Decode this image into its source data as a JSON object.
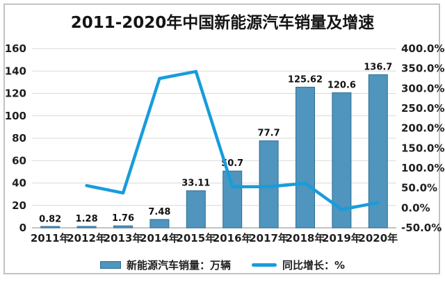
{
  "chart_data": {
    "type": "combo-bar-line",
    "title": "2011-2020年中国新能源汽车销量及增速",
    "categories": [
      "2011年",
      "2012年",
      "2013年",
      "2014年",
      "2015年",
      "2016年",
      "2017年",
      "2018年",
      "2019年",
      "2020年"
    ],
    "series": [
      {
        "name": "新能源汽车销量：万辆",
        "chart_type": "bar",
        "axis": "left",
        "values": [
          0.82,
          1.28,
          1.76,
          7.48,
          33.11,
          50.7,
          77.7,
          125.62,
          120.6,
          136.7
        ],
        "labels": [
          "0.82",
          "1.28",
          "1.76",
          "7.48",
          "33.11",
          "50.7",
          "77.7",
          "125.62",
          "120.6",
          "136.7"
        ]
      },
      {
        "name": "同比增长：%",
        "chart_type": "line",
        "axis": "right",
        "values": [
          null,
          56.1,
          37.5,
          325.0,
          342.6,
          53.1,
          53.3,
          61.7,
          -4.0,
          13.3
        ]
      }
    ],
    "y_left": {
      "min": 0,
      "max": 160,
      "step": 20,
      "tick_labels": [
        "0",
        "20",
        "40",
        "60",
        "80",
        "100",
        "120",
        "140",
        "160"
      ]
    },
    "y_right": {
      "min": -50,
      "max": 400,
      "step": 50,
      "tick_labels": [
        "-50.0%",
        "0.0%",
        "50.0%",
        "100.0%",
        "150.0%",
        "200.0%",
        "250.0%",
        "300.0%",
        "350.0%",
        "400.0%"
      ]
    },
    "grid": "horizontal",
    "legend_position": "bottom",
    "legend": [
      {
        "label": "新能源汽车销量：万辆",
        "swatch": "bar"
      },
      {
        "label": "同比增长：%",
        "swatch": "line"
      }
    ],
    "colors": {
      "bar_fill": "#4f95bd",
      "bar_border": "#2e6e94",
      "line": "#189cdb",
      "grid": "#d9d9d9",
      "axis_line": "#adadad",
      "text": "#1a1a1a",
      "card_border": "#c2c2c2"
    }
  }
}
